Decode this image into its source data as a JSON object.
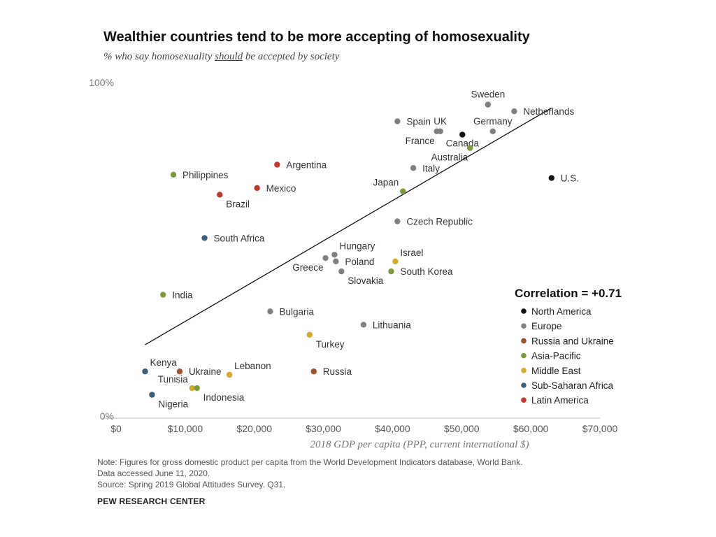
{
  "title": "Wealthier countries tend to be more accepting of homosexuality",
  "subtitle": {
    "before": "% who say homosexuality ",
    "emph": "should",
    "after": " be accepted by society"
  },
  "notes": [
    "Note: Figures for gross domestic product per capita from the World Development Indicators database, World Bank.",
    "Data accessed June 11, 2020.",
    "Source: Spring 2019 Global Attitudes Survey. Q31."
  ],
  "source_brand": "PEW RESEARCH CENTER",
  "chart_data": {
    "type": "scatter",
    "xlabel": "2018 GDP per capita (PPP, current international $)",
    "xlim": [
      0,
      70000
    ],
    "ylim": [
      0,
      100
    ],
    "x_ticks": [
      "$0",
      "$10,000",
      "$20,000",
      "$30,000",
      "$40,000",
      "$50,000",
      "$60,000",
      "$70,000"
    ],
    "y_ticks": [
      "0%",
      "100%"
    ],
    "correlation_label": "Correlation = +0.71",
    "trendline": {
      "x": [
        4200,
        63000
      ],
      "y": [
        22,
        93
      ]
    },
    "regions": [
      {
        "name": "North America",
        "color": "#111111"
      },
      {
        "name": "Europe",
        "color": "#808080"
      },
      {
        "name": "Russia and Ukraine",
        "color": "#a0522d"
      },
      {
        "name": "Asia-Pacific",
        "color": "#7f9a3a"
      },
      {
        "name": "Middle East",
        "color": "#d4aa2a"
      },
      {
        "name": "Sub-Saharan Africa",
        "color": "#3b5f7a"
      },
      {
        "name": "Latin America",
        "color": "#c0392b"
      }
    ],
    "points": [
      {
        "name": "Sweden",
        "region": "Europe",
        "x": 53800,
        "y": 94,
        "label_pos": "above"
      },
      {
        "name": "Netherlands",
        "region": "Europe",
        "x": 57600,
        "y": 92,
        "label_pos": "right"
      },
      {
        "name": "Germany",
        "region": "Europe",
        "x": 54500,
        "y": 86,
        "label_pos": "above"
      },
      {
        "name": "Spain",
        "region": "Europe",
        "x": 40700,
        "y": 89,
        "label_pos": "right"
      },
      {
        "name": "UK",
        "region": "Europe",
        "x": 46900,
        "y": 86,
        "label_pos": "above"
      },
      {
        "name": "France",
        "region": "Europe",
        "x": 46400,
        "y": 86,
        "label_pos": "belowleft"
      },
      {
        "name": "Canada",
        "region": "North America",
        "x": 50100,
        "y": 85,
        "label_pos": "below"
      },
      {
        "name": "Australia",
        "region": "Asia-Pacific",
        "x": 51200,
        "y": 81,
        "label_pos": "belowleft"
      },
      {
        "name": "Italy",
        "region": "Europe",
        "x": 43000,
        "y": 75,
        "label_pos": "right"
      },
      {
        "name": "U.S.",
        "region": "North America",
        "x": 63000,
        "y": 72,
        "label_pos": "right"
      },
      {
        "name": "Japan",
        "region": "Asia-Pacific",
        "x": 41500,
        "y": 68,
        "label_pos": "aboveleft"
      },
      {
        "name": "Argentina",
        "region": "Latin America",
        "x": 23300,
        "y": 76,
        "label_pos": "right"
      },
      {
        "name": "Philippines",
        "region": "Asia-Pacific",
        "x": 8300,
        "y": 73,
        "label_pos": "right"
      },
      {
        "name": "Mexico",
        "region": "Latin America",
        "x": 20400,
        "y": 69,
        "label_pos": "right"
      },
      {
        "name": "Brazil",
        "region": "Latin America",
        "x": 15000,
        "y": 67,
        "label_pos": "belowright"
      },
      {
        "name": "Czech Republic",
        "region": "Europe",
        "x": 40700,
        "y": 59,
        "label_pos": "right"
      },
      {
        "name": "South Africa",
        "region": "Sub-Saharan Africa",
        "x": 12800,
        "y": 54,
        "label_pos": "right"
      },
      {
        "name": "Hungary",
        "region": "Europe",
        "x": 31600,
        "y": 49,
        "label_pos": "aboveright"
      },
      {
        "name": "Greece",
        "region": "Europe",
        "x": 30300,
        "y": 48,
        "label_pos": "belowleft"
      },
      {
        "name": "Poland",
        "region": "Europe",
        "x": 31800,
        "y": 47,
        "label_pos": "right"
      },
      {
        "name": "Slovakia",
        "region": "Europe",
        "x": 32600,
        "y": 44,
        "label_pos": "belowright"
      },
      {
        "name": "Israel",
        "region": "Middle East",
        "x": 40400,
        "y": 47,
        "label_pos": "aboveright"
      },
      {
        "name": "South Korea",
        "region": "Asia-Pacific",
        "x": 39800,
        "y": 44,
        "label_pos": "right"
      },
      {
        "name": "India",
        "region": "Asia-Pacific",
        "x": 6800,
        "y": 37,
        "label_pos": "right"
      },
      {
        "name": "Bulgaria",
        "region": "Europe",
        "x": 22300,
        "y": 32,
        "label_pos": "right"
      },
      {
        "name": "Lithuania",
        "region": "Europe",
        "x": 35800,
        "y": 28,
        "label_pos": "right"
      },
      {
        "name": "Turkey",
        "region": "Middle East",
        "x": 28000,
        "y": 25,
        "label_pos": "belowright"
      },
      {
        "name": "Kenya",
        "region": "Sub-Saharan Africa",
        "x": 4200,
        "y": 14,
        "label_pos": "aboveright"
      },
      {
        "name": "Ukraine",
        "region": "Russia and Ukraine",
        "x": 9200,
        "y": 14,
        "label_pos": "right"
      },
      {
        "name": "Lebanon",
        "region": "Middle East",
        "x": 16400,
        "y": 13,
        "label_pos": "aboveright"
      },
      {
        "name": "Russia",
        "region": "Russia and Ukraine",
        "x": 28600,
        "y": 14,
        "label_pos": "right"
      },
      {
        "name": "Tunisia",
        "region": "Middle East",
        "x": 11000,
        "y": 9,
        "label_pos": "aboveleft"
      },
      {
        "name": "Indonesia",
        "region": "Asia-Pacific",
        "x": 11700,
        "y": 9,
        "label_pos": "belowright"
      },
      {
        "name": "Nigeria",
        "region": "Sub-Saharan Africa",
        "x": 5200,
        "y": 7,
        "label_pos": "belowright"
      }
    ]
  }
}
